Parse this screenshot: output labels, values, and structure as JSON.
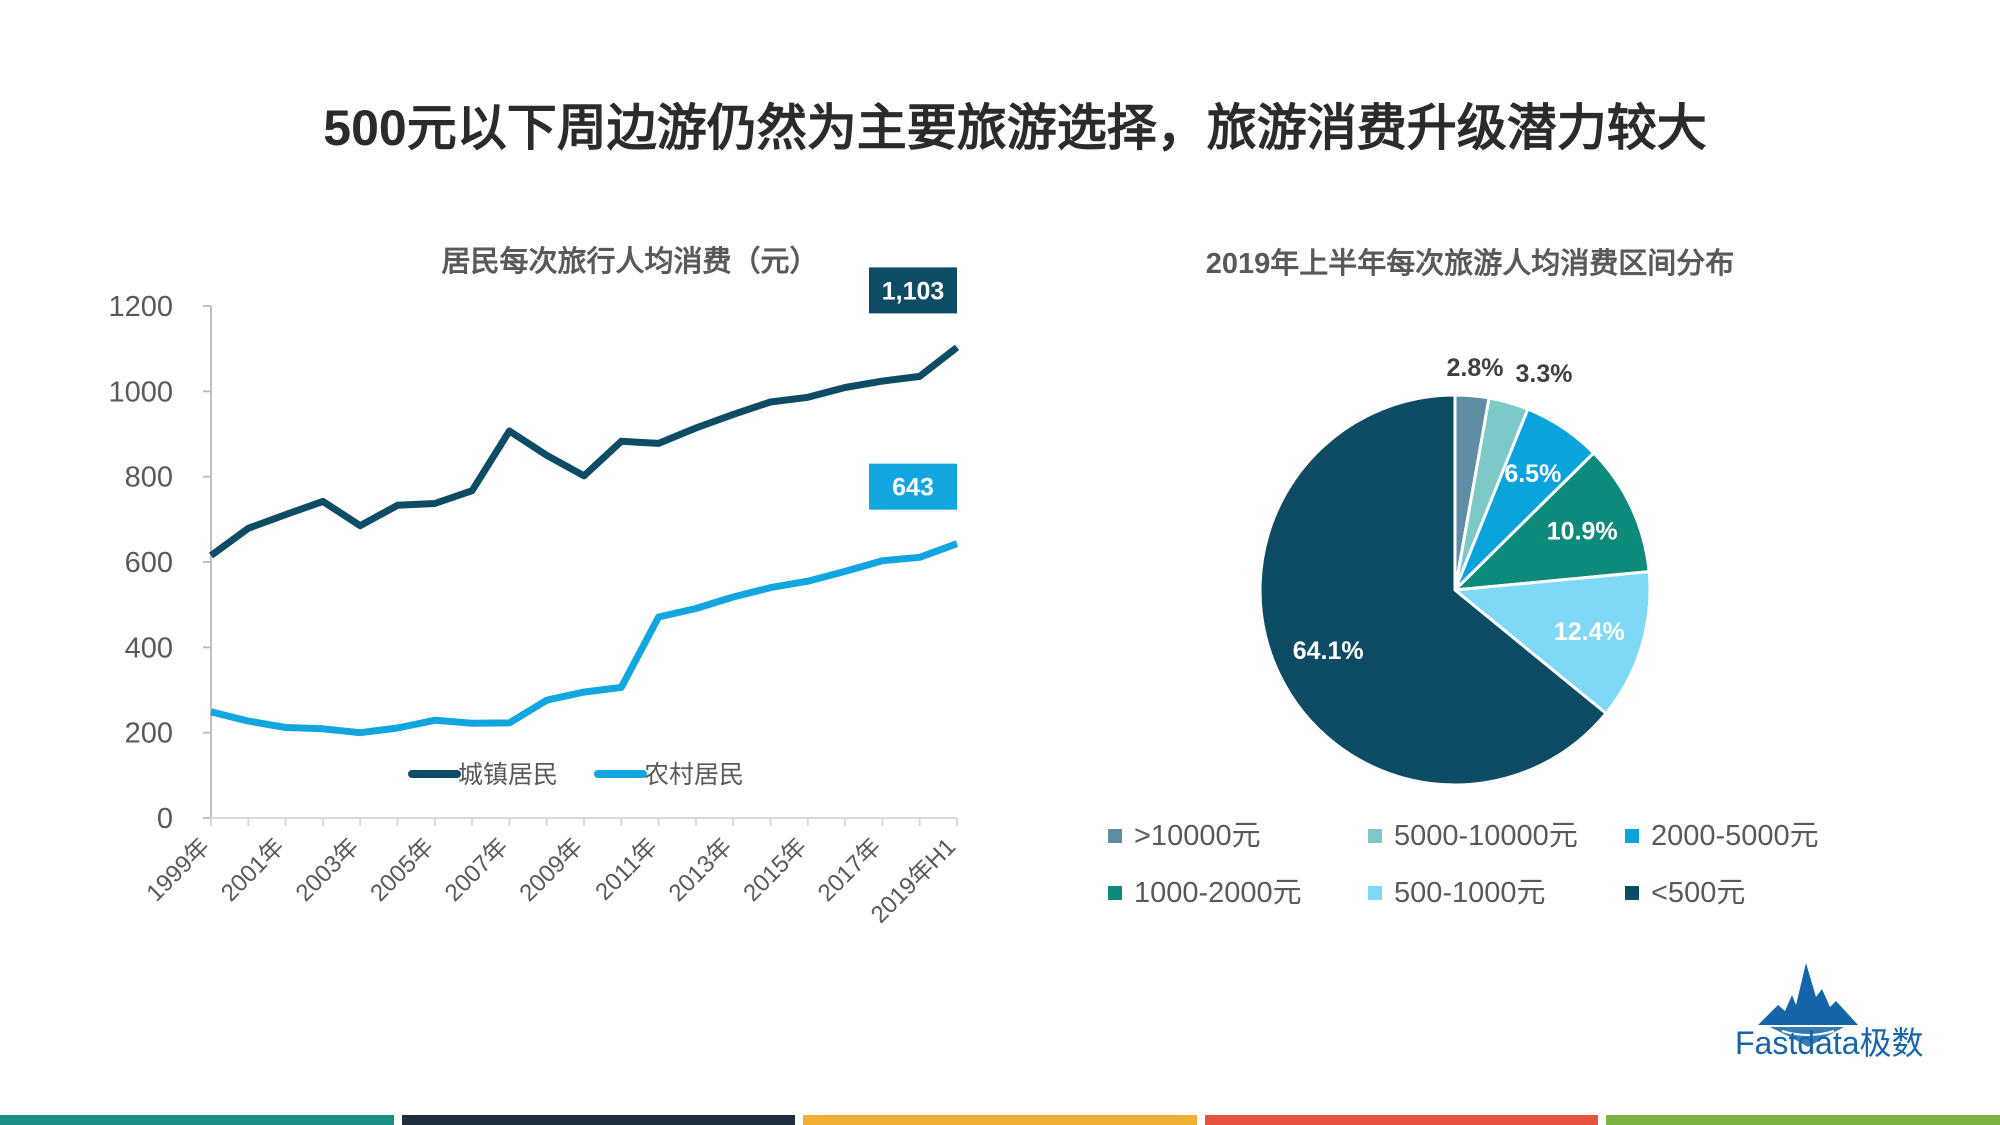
{
  "page": {
    "title": "500元以下周边游仍然为主要旅游选择，旅游消费升级潜力较大"
  },
  "chart_data": [
    {
      "type": "line",
      "title": "居民每次旅行人均消费（元）",
      "ylim": [
        0,
        1200
      ],
      "yticks": [
        0,
        200,
        400,
        600,
        800,
        1000,
        1200
      ],
      "x": [
        "1999年",
        "2000年",
        "2001年",
        "2002年",
        "2003年",
        "2004年",
        "2005年",
        "2006年",
        "2007年",
        "2008年",
        "2009年",
        "2010年",
        "2011年",
        "2012年",
        "2013年",
        "2014年",
        "2015年",
        "2016年",
        "2017年",
        "2018年",
        "2019年H1"
      ],
      "x_tick_labels": [
        "1999年",
        "2001年",
        "2003年",
        "2005年",
        "2007年",
        "2009年",
        "2011年",
        "2013年",
        "2015年",
        "2017年",
        "2019年H1"
      ],
      "series": [
        {
          "name": "城镇居民",
          "color": "#0e4c66",
          "values": [
            615,
            679,
            711,
            742,
            685,
            733,
            737,
            767,
            907,
            850,
            802,
            883,
            878,
            914,
            946,
            975,
            986,
            1009,
            1024,
            1035,
            1103
          ],
          "end_label": "1,103"
        },
        {
          "name": "农村居民",
          "color": "#11a6df",
          "values": [
            249,
            227,
            212,
            209,
            200,
            211,
            229,
            222,
            223,
            276,
            295,
            306,
            471,
            491,
            518,
            540,
            555,
            578,
            603,
            611,
            643
          ],
          "end_label": "643"
        }
      ]
    },
    {
      "type": "pie",
      "title": "2019年上半年每次旅游人均消费区间分布",
      "slices": [
        {
          "label": ">10000元",
          "value": 2.8,
          "display": "2.8%",
          "color": "#5f8ea4"
        },
        {
          "label": "5000-10000元",
          "value": 3.3,
          "display": "3.3%",
          "color": "#7cc9c8"
        },
        {
          "label": "2000-5000元",
          "value": 6.5,
          "display": "6.5%",
          "color": "#0aa3dc"
        },
        {
          "label": "1000-2000元",
          "value": 10.9,
          "display": "10.9%",
          "color": "#0e8a7a"
        },
        {
          "label": "500-1000元",
          "value": 12.4,
          "display": "12.4%",
          "color": "#7fd8f6"
        },
        {
          "label": "<500元",
          "value": 64.1,
          "display": "64.1%",
          "color": "#0e4c66"
        }
      ]
    }
  ],
  "branding": {
    "logo_text": "Fastdata极数"
  },
  "footer_colors": [
    "#1a8f86",
    "#1f2d3d",
    "#f2b134",
    "#e8533f",
    "#7cb342"
  ]
}
